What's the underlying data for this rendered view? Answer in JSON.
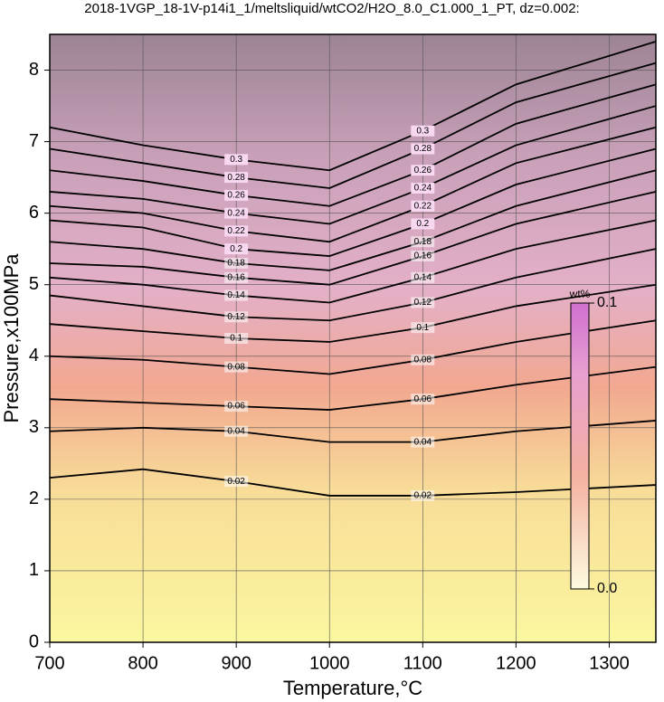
{
  "chart_data": {
    "type": "contour",
    "title": "2018-1VGP_18-1V-p14i1_1/meltsliquid/wtCO2/H2O_8.0_C1.000_1_PT, dz=0.002:",
    "x_label": "Temperature,°C",
    "y_label": "Pressure,x100MPa",
    "x": [
      700,
      800,
      900,
      1000,
      1100,
      1200,
      1350
    ],
    "contours": [
      {
        "level": 0.02,
        "values": [
          2.3,
          2.42,
          2.25,
          2.05,
          2.05,
          2.1,
          2.2
        ]
      },
      {
        "level": 0.04,
        "values": [
          2.95,
          3.0,
          2.95,
          2.8,
          2.8,
          2.95,
          3.1
        ]
      },
      {
        "level": 0.06,
        "values": [
          3.4,
          3.35,
          3.3,
          3.25,
          3.4,
          3.6,
          3.85
        ]
      },
      {
        "level": 0.08,
        "values": [
          4.0,
          3.95,
          3.85,
          3.75,
          3.95,
          4.2,
          4.5
        ]
      },
      {
        "level": 0.1,
        "values": [
          4.45,
          4.35,
          4.25,
          4.2,
          4.4,
          4.7,
          5.0
        ]
      },
      {
        "level": 0.12,
        "values": [
          4.85,
          4.7,
          4.55,
          4.5,
          4.75,
          5.1,
          5.5
        ]
      },
      {
        "level": 0.14,
        "values": [
          5.1,
          5.0,
          4.85,
          4.75,
          5.1,
          5.5,
          5.9
        ]
      },
      {
        "level": 0.16,
        "values": [
          5.3,
          5.25,
          5.1,
          5.0,
          5.4,
          5.85,
          6.3
        ]
      },
      {
        "level": 0.18,
        "values": [
          5.6,
          5.5,
          5.3,
          5.2,
          5.6,
          6.1,
          6.6
        ]
      },
      {
        "level": 0.2,
        "values": [
          5.9,
          5.8,
          5.5,
          5.4,
          5.85,
          6.4,
          6.9
        ]
      },
      {
        "level": 0.22,
        "values": [
          6.1,
          6.0,
          5.75,
          5.6,
          6.1,
          6.7,
          7.2
        ]
      },
      {
        "level": 0.24,
        "values": [
          6.3,
          6.2,
          6.0,
          5.85,
          6.35,
          6.95,
          7.5
        ]
      },
      {
        "level": 0.26,
        "values": [
          6.6,
          6.45,
          6.25,
          6.1,
          6.6,
          7.25,
          7.8
        ]
      },
      {
        "level": 0.28,
        "values": [
          6.9,
          6.7,
          6.5,
          6.35,
          6.9,
          7.55,
          8.1
        ]
      },
      {
        "level": 0.3,
        "values": [
          7.2,
          6.95,
          6.75,
          6.6,
          7.15,
          7.8,
          8.4
        ]
      }
    ],
    "xlim": [
      700,
      1350
    ],
    "ylim": [
      0,
      8.5
    ],
    "xticks": [
      700,
      800,
      900,
      1000,
      1100,
      1200,
      1300
    ],
    "yticks": [
      0,
      1,
      2,
      3,
      4,
      5,
      6,
      7,
      8
    ],
    "grid": true,
    "colorbar": {
      "label": "wt%",
      "lim": [
        0,
        0.1
      ],
      "ticks": [
        {
          "value": 0,
          "label": "0.0"
        },
        0.1
      ]
    }
  }
}
